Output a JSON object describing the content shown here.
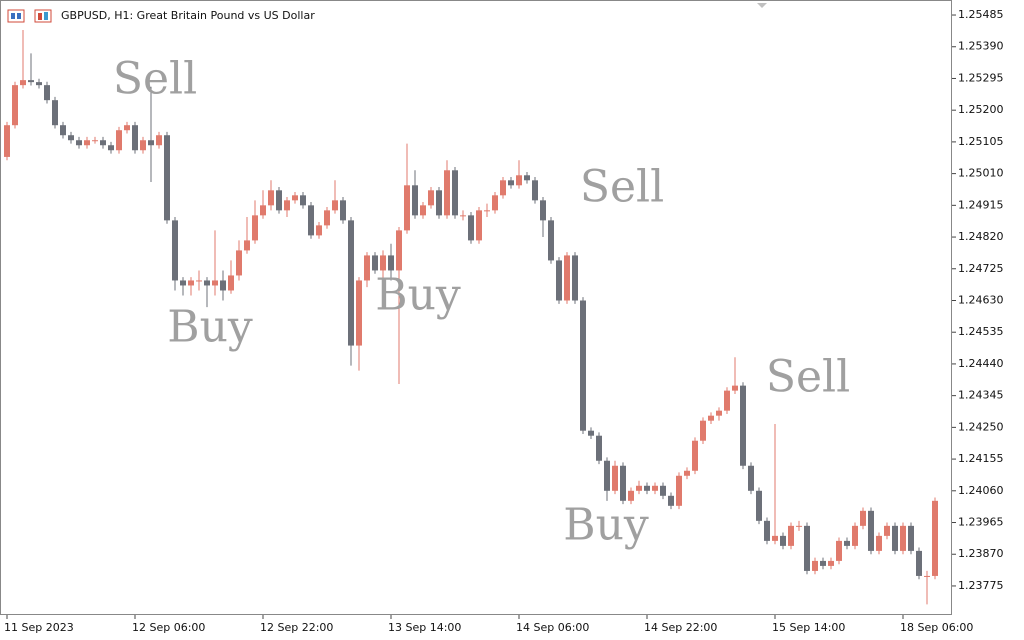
{
  "chart_data": {
    "type": "candlestick",
    "title": "GBPUSD, H1:  Great Britain Pound vs US Dollar",
    "bull_color": "#e07a6c",
    "bear_color": "#6c7079",
    "ylim": [
      1.23688,
      1.2553
    ],
    "yticks": [
      1.25485,
      {
        "value": 1.2539,
        "label": "1.25390"
      },
      1.25295,
      {
        "value": 1.252,
        "label": "1.25200"
      },
      1.25105,
      {
        "value": 1.2501,
        "label": "1.25010"
      },
      1.24915,
      {
        "value": 1.2482,
        "label": "1.24820"
      },
      1.24725,
      {
        "value": 1.2463,
        "label": "1.24630"
      },
      1.24535,
      {
        "value": 1.2444,
        "label": "1.24440"
      },
      1.24345,
      {
        "value": 1.2425,
        "label": "1.24250"
      },
      1.24155,
      {
        "value": 1.2406,
        "label": "1.24060"
      },
      1.23965,
      {
        "value": 1.2387,
        "label": "1.23870"
      },
      1.23775
    ],
    "annotations": [
      "Sell",
      "Buy",
      "Sell",
      "Buy",
      "Sell",
      "Buy"
    ],
    "categories": [
      "11 Sep 2023",
      null,
      null,
      null,
      null,
      null,
      null,
      null,
      null,
      null,
      null,
      null,
      null,
      null,
      null,
      null,
      "12 Sep 06:00",
      null,
      null,
      null,
      null,
      null,
      null,
      null,
      null,
      null,
      null,
      null,
      null,
      null,
      null,
      null,
      "12 Sep 22:00",
      null,
      null,
      null,
      null,
      null,
      null,
      null,
      null,
      null,
      null,
      null,
      null,
      null,
      null,
      null,
      "13 Sep 14:00",
      null,
      null,
      null,
      null,
      null,
      null,
      null,
      null,
      null,
      null,
      null,
      null,
      null,
      null,
      null,
      "14 Sep 06:00",
      null,
      null,
      null,
      null,
      null,
      null,
      null,
      null,
      null,
      null,
      null,
      null,
      null,
      null,
      null,
      "14 Sep 22:00",
      null,
      null,
      null,
      null,
      null,
      null,
      null,
      null,
      null,
      null,
      null,
      null,
      null,
      null,
      null,
      "15 Sep 14:00",
      null,
      null,
      null,
      null,
      null,
      null,
      null,
      null,
      null,
      null,
      null,
      null,
      null,
      null,
      null,
      "18 Sep 06:00",
      null,
      null,
      null,
      null
    ],
    "ohlc": [
      [
        1.2506,
        1.25165,
        1.2505,
        1.25155
      ],
      [
        1.25155,
        1.25285,
        1.25145,
        1.25275
      ],
      [
        1.25275,
        1.2544,
        1.25265,
        1.2529
      ],
      [
        1.2529,
        1.2537,
        1.25274,
        1.25284
      ],
      [
        1.25284,
        1.25294,
        1.25265,
        1.25275
      ],
      [
        1.25275,
        1.25285,
        1.2522,
        1.2523
      ],
      [
        1.2523,
        1.2524,
        1.25145,
        1.25155
      ],
      [
        1.25155,
        1.25165,
        1.25115,
        1.25125
      ],
      [
        1.25125,
        1.25135,
        1.251,
        1.2511
      ],
      [
        1.2511,
        1.2512,
        1.25085,
        1.25095
      ],
      [
        1.25095,
        1.2512,
        1.25085,
        1.2511
      ],
      [
        1.2511,
        1.2512,
        1.251,
        1.2511
      ],
      [
        1.2511,
        1.2512,
        1.25085,
        1.25095
      ],
      [
        1.25095,
        1.25105,
        1.2507,
        1.2508
      ],
      [
        1.2508,
        1.2515,
        1.2507,
        1.2514
      ],
      [
        1.2514,
        1.25165,
        1.2513,
        1.25155
      ],
      [
        1.25155,
        1.25165,
        1.2507,
        1.2508
      ],
      [
        1.2508,
        1.2512,
        1.2507,
        1.2511
      ],
      [
        1.2511,
        1.2527,
        1.24985,
        1.25095
      ],
      [
        1.25095,
        1.25135,
        1.25085,
        1.25125
      ],
      [
        1.25125,
        1.25135,
        1.2486,
        1.2487
      ],
      [
        1.2487,
        1.2488,
        1.2466,
        1.2469
      ],
      [
        1.2469,
        1.247,
        1.24645,
        1.24675
      ],
      [
        1.24675,
        1.247,
        1.24645,
        1.2469
      ],
      [
        1.2469,
        1.2472,
        1.2466,
        1.2469
      ],
      [
        1.2469,
        1.247,
        1.2461,
        1.24675
      ],
      [
        1.24675,
        1.2484,
        1.24645,
        1.2469
      ],
      [
        1.2469,
        1.2472,
        1.2463,
        1.2466
      ],
      [
        1.2466,
        1.2475,
        1.2465,
        1.24705
      ],
      [
        1.24705,
        1.2481,
        1.2469,
        1.2478
      ],
      [
        1.2478,
        1.2488,
        1.2477,
        1.2481
      ],
      [
        1.2481,
        1.2493,
        1.248,
        1.24885
      ],
      [
        1.24885,
        1.2496,
        1.24875,
        1.24915
      ],
      [
        1.24915,
        1.2499,
        1.249,
        1.2496
      ],
      [
        1.2496,
        1.2497,
        1.2489,
        1.249
      ],
      [
        1.249,
        1.2494,
        1.2488,
        1.2493
      ],
      [
        1.2493,
        1.24955,
        1.2492,
        1.24945
      ],
      [
        1.24945,
        1.24955,
        1.24905,
        1.24915
      ],
      [
        1.24915,
        1.24925,
        1.24815,
        1.24825
      ],
      [
        1.24825,
        1.24865,
        1.24815,
        1.24855
      ],
      [
        1.24855,
        1.2491,
        1.24845,
        1.249
      ],
      [
        1.249,
        1.2499,
        1.2489,
        1.2493
      ],
      [
        1.2493,
        1.2494,
        1.2486,
        1.2487
      ],
      [
        1.2487,
        1.2488,
        1.24435,
        1.24495
      ],
      [
        1.24495,
        1.247,
        1.2442,
        1.2469
      ],
      [
        1.2469,
        1.24775,
        1.2467,
        1.24765
      ],
      [
        1.24765,
        1.24775,
        1.2471,
        1.2472
      ],
      [
        1.2472,
        1.2478,
        1.24675,
        1.24765
      ],
      [
        1.24765,
        1.248,
        1.2469,
        1.2472
      ],
      [
        1.2472,
        1.2485,
        1.2438,
        1.2484
      ],
      [
        1.2484,
        1.251,
        1.2483,
        1.24975
      ],
      [
        1.24975,
        1.2502,
        1.24875,
        1.24885
      ],
      [
        1.24885,
        1.24925,
        1.24875,
        1.24915
      ],
      [
        1.24915,
        1.2497,
        1.24905,
        1.2496
      ],
      [
        1.2496,
        1.2497,
        1.24875,
        1.24885
      ],
      [
        1.24885,
        1.2505,
        1.24875,
        1.2502
      ],
      [
        1.2502,
        1.2503,
        1.24875,
        1.24885
      ],
      [
        1.24885,
        1.249,
        1.2487,
        1.24885
      ],
      [
        1.24885,
        1.24895,
        1.248,
        1.2481
      ],
      [
        1.2481,
        1.2491,
        1.248,
        1.249
      ],
      [
        1.249,
        1.2492,
        1.2488,
        1.249
      ],
      [
        1.249,
        1.24955,
        1.2489,
        1.24945
      ],
      [
        1.24945,
        1.25,
        1.24935,
        1.2499
      ],
      [
        1.2499,
        1.25,
        1.24965,
        1.24975
      ],
      [
        1.24975,
        1.2505,
        1.24965,
        1.25005
      ],
      [
        1.25005,
        1.25015,
        1.2498,
        1.2499
      ],
      [
        1.2499,
        1.25,
        1.2492,
        1.2493
      ],
      [
        1.2493,
        1.2494,
        1.2482,
        1.2487
      ],
      [
        1.2487,
        1.2488,
        1.2474,
        1.2475
      ],
      [
        1.2475,
        1.2476,
        1.2462,
        1.2463
      ],
      [
        1.2463,
        1.24775,
        1.2462,
        1.24765
      ],
      [
        1.24765,
        1.24775,
        1.2462,
        1.2463
      ],
      [
        1.2463,
        1.2464,
        1.2423,
        1.2424
      ],
      [
        1.2424,
        1.2425,
        1.24215,
        1.24225
      ],
      [
        1.24225,
        1.24235,
        1.2414,
        1.2415
      ],
      [
        1.2415,
        1.2416,
        1.2403,
        1.2406
      ],
      [
        1.2406,
        1.2415,
        1.2405,
        1.24135
      ],
      [
        1.24135,
        1.24145,
        1.2402,
        1.2403
      ],
      [
        1.2403,
        1.2407,
        1.2402,
        1.2406
      ],
      [
        1.2406,
        1.2409,
        1.2405,
        1.24075
      ],
      [
        1.24075,
        1.24085,
        1.2405,
        1.2406
      ],
      [
        1.2406,
        1.24085,
        1.2405,
        1.24075
      ],
      [
        1.24075,
        1.24085,
        1.24035,
        1.24045
      ],
      [
        1.24045,
        1.24055,
        1.24005,
        1.24015
      ],
      [
        1.24015,
        1.24115,
        1.24005,
        1.24105
      ],
      [
        1.24105,
        1.2413,
        1.24095,
        1.2412
      ],
      [
        1.2412,
        1.2422,
        1.2411,
        1.2421
      ],
      [
        1.2421,
        1.2428,
        1.242,
        1.2427
      ],
      [
        1.2427,
        1.24295,
        1.2426,
        1.24285
      ],
      [
        1.24285,
        1.2431,
        1.2427,
        1.243
      ],
      [
        1.243,
        1.2437,
        1.2429,
        1.2436
      ],
      [
        1.2436,
        1.2446,
        1.2435,
        1.24375
      ],
      [
        1.24375,
        1.24385,
        1.24125,
        1.24135
      ],
      [
        1.24135,
        1.24145,
        1.2405,
        1.2406
      ],
      [
        1.2406,
        1.2407,
        1.2396,
        1.2397
      ],
      [
        1.2397,
        1.2398,
        1.239,
        1.2391
      ],
      [
        1.2391,
        1.2426,
        1.239,
        1.23925
      ],
      [
        1.23925,
        1.23935,
        1.23885,
        1.23895
      ],
      [
        1.23895,
        1.23965,
        1.23885,
        1.23955
      ],
      [
        1.23955,
        1.2397,
        1.2394,
        1.23955
      ],
      [
        1.23955,
        1.23965,
        1.2381,
        1.2382
      ],
      [
        1.2382,
        1.2386,
        1.2381,
        1.2385
      ],
      [
        1.2385,
        1.2386,
        1.23825,
        1.23835
      ],
      [
        1.23835,
        1.2386,
        1.23825,
        1.2385
      ],
      [
        1.2385,
        1.2392,
        1.2384,
        1.2391
      ],
      [
        1.2391,
        1.2392,
        1.23885,
        1.23895
      ],
      [
        1.23895,
        1.23965,
        1.23885,
        1.23955
      ],
      [
        1.23955,
        1.2401,
        1.23945,
        1.24
      ],
      [
        1.24,
        1.2401,
        1.2387,
        1.2388
      ],
      [
        1.2388,
        1.23935,
        1.2387,
        1.23925
      ],
      [
        1.23925,
        1.23965,
        1.23915,
        1.23955
      ],
      [
        1.23955,
        1.23965,
        1.2387,
        1.2388
      ],
      [
        1.2388,
        1.23965,
        1.2387,
        1.23955
      ],
      [
        1.23955,
        1.23965,
        1.2387,
        1.2388
      ],
      [
        1.2388,
        1.2389,
        1.23795,
        1.23805
      ],
      [
        1.23805,
        1.2382,
        1.2372,
        1.23805
      ],
      [
        1.23805,
        1.2404,
        1.23795,
        1.2403
      ]
    ]
  }
}
